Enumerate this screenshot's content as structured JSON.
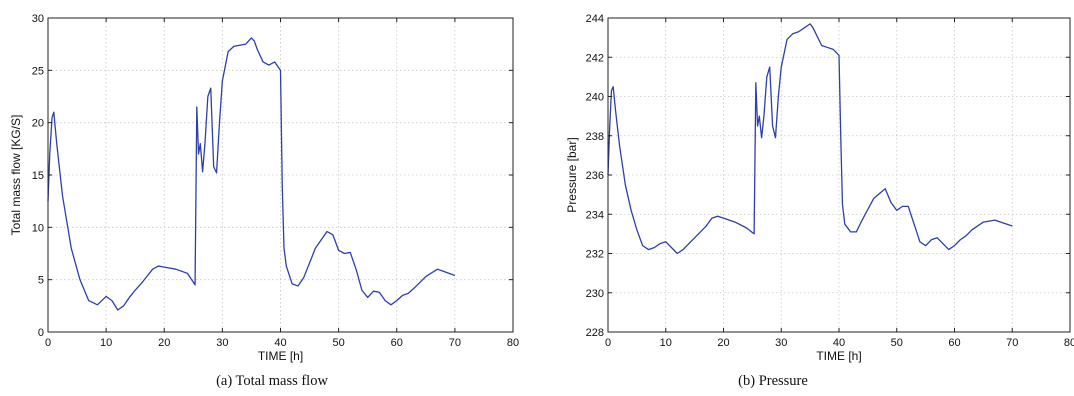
{
  "chart_data": [
    {
      "type": "line",
      "caption": "(a)    Total mass flow",
      "xlabel": "TIME [h]",
      "ylabel": "Total mass flow [KG/S]",
      "xlim": [
        0,
        80
      ],
      "ylim": [
        0,
        30
      ],
      "xticks": [
        0,
        10,
        20,
        30,
        40,
        50,
        60,
        70,
        80
      ],
      "yticks": [
        0,
        5,
        10,
        15,
        20,
        25,
        30
      ],
      "grid": true,
      "line_color": "#2e3fa8",
      "x": [
        0,
        0.3,
        0.7,
        1.0,
        1.5,
        2.5,
        4,
        5.5,
        7,
        8.5,
        10,
        11,
        12,
        13,
        14,
        15,
        16,
        17,
        18,
        19,
        20,
        22,
        24,
        25.3,
        25.6,
        25.9,
        26.2,
        26.6,
        27.0,
        27.5,
        28,
        28.5,
        29,
        29.5,
        30,
        31,
        32,
        33,
        34,
        35,
        35.5,
        36,
        37,
        38,
        39,
        40,
        40.3,
        40.6,
        41,
        42,
        43,
        44,
        46,
        48,
        49,
        50,
        51,
        52,
        53,
        54,
        55,
        56,
        57,
        58,
        59,
        60,
        61,
        62,
        63,
        65,
        67,
        68,
        70
      ],
      "y": [
        12.5,
        17,
        20.5,
        21,
        18,
        13,
        8,
        5,
        3,
        2.6,
        3.4,
        3.0,
        2.1,
        2.5,
        3.3,
        4.0,
        4.6,
        5.3,
        6.0,
        6.3,
        6.2,
        6.0,
        5.6,
        4.5,
        21.5,
        17,
        18,
        15.3,
        18,
        22.5,
        23.3,
        15.8,
        15.2,
        20,
        24,
        26.8,
        27.3,
        27.4,
        27.5,
        28.1,
        27.8,
        27,
        25.8,
        25.5,
        25.8,
        25.0,
        14,
        8,
        6.3,
        4.6,
        4.4,
        5.2,
        8.0,
        9.6,
        9.3,
        7.8,
        7.5,
        7.6,
        6.0,
        4.0,
        3.3,
        3.9,
        3.8,
        3.0,
        2.6,
        3.0,
        3.5,
        3.7,
        4.2,
        5.3,
        6.0,
        5.8,
        5.4
      ]
    },
    {
      "type": "line",
      "caption": "(b) Pressure",
      "xlabel": "TIME [h]",
      "ylabel": "Pressure [bar]",
      "xlim": [
        0,
        80
      ],
      "ylim": [
        228,
        244
      ],
      "xticks": [
        0,
        10,
        20,
        30,
        40,
        50,
        60,
        70,
        80
      ],
      "yticks": [
        228,
        230,
        232,
        234,
        236,
        238,
        240,
        242,
        244
      ],
      "grid": true,
      "line_color": "#2e3fa8",
      "x": [
        0,
        0.3,
        0.6,
        0.9,
        1.3,
        2,
        3,
        4,
        5,
        6,
        7,
        8,
        9,
        10,
        11,
        12,
        13,
        14,
        15,
        16,
        17,
        18,
        19,
        20,
        22,
        24,
        25.3,
        25.6,
        25.9,
        26.2,
        26.6,
        27.0,
        27.5,
        28,
        28.5,
        29,
        29.5,
        30,
        31,
        32,
        33,
        34,
        35,
        35.5,
        36,
        37,
        38,
        39,
        40,
        40.3,
        40.6,
        41,
        42,
        43,
        44,
        46,
        48,
        49,
        50,
        51,
        52,
        53,
        54,
        55,
        56,
        57,
        58,
        59,
        60,
        61,
        62,
        63,
        65,
        67,
        68,
        70
      ],
      "y": [
        236,
        238.5,
        240.3,
        240.5,
        239.3,
        237.5,
        235.5,
        234.2,
        233.2,
        232.4,
        232.2,
        232.3,
        232.5,
        232.6,
        232.3,
        232.0,
        232.2,
        232.5,
        232.8,
        233.1,
        233.4,
        233.8,
        233.9,
        233.8,
        233.6,
        233.3,
        233.0,
        240.7,
        238.5,
        239.0,
        237.9,
        239.0,
        241.0,
        241.5,
        238.5,
        237.9,
        240.0,
        241.5,
        242.9,
        243.2,
        243.3,
        243.5,
        243.7,
        243.5,
        243.2,
        242.6,
        242.5,
        242.4,
        242.1,
        238.0,
        234.5,
        233.5,
        233.1,
        233.1,
        233.7,
        234.8,
        235.3,
        234.6,
        234.2,
        234.4,
        234.4,
        233.5,
        232.6,
        232.4,
        232.7,
        232.8,
        232.5,
        232.2,
        232.4,
        232.7,
        232.9,
        233.2,
        233.6,
        233.7,
        233.6,
        233.4
      ]
    }
  ]
}
